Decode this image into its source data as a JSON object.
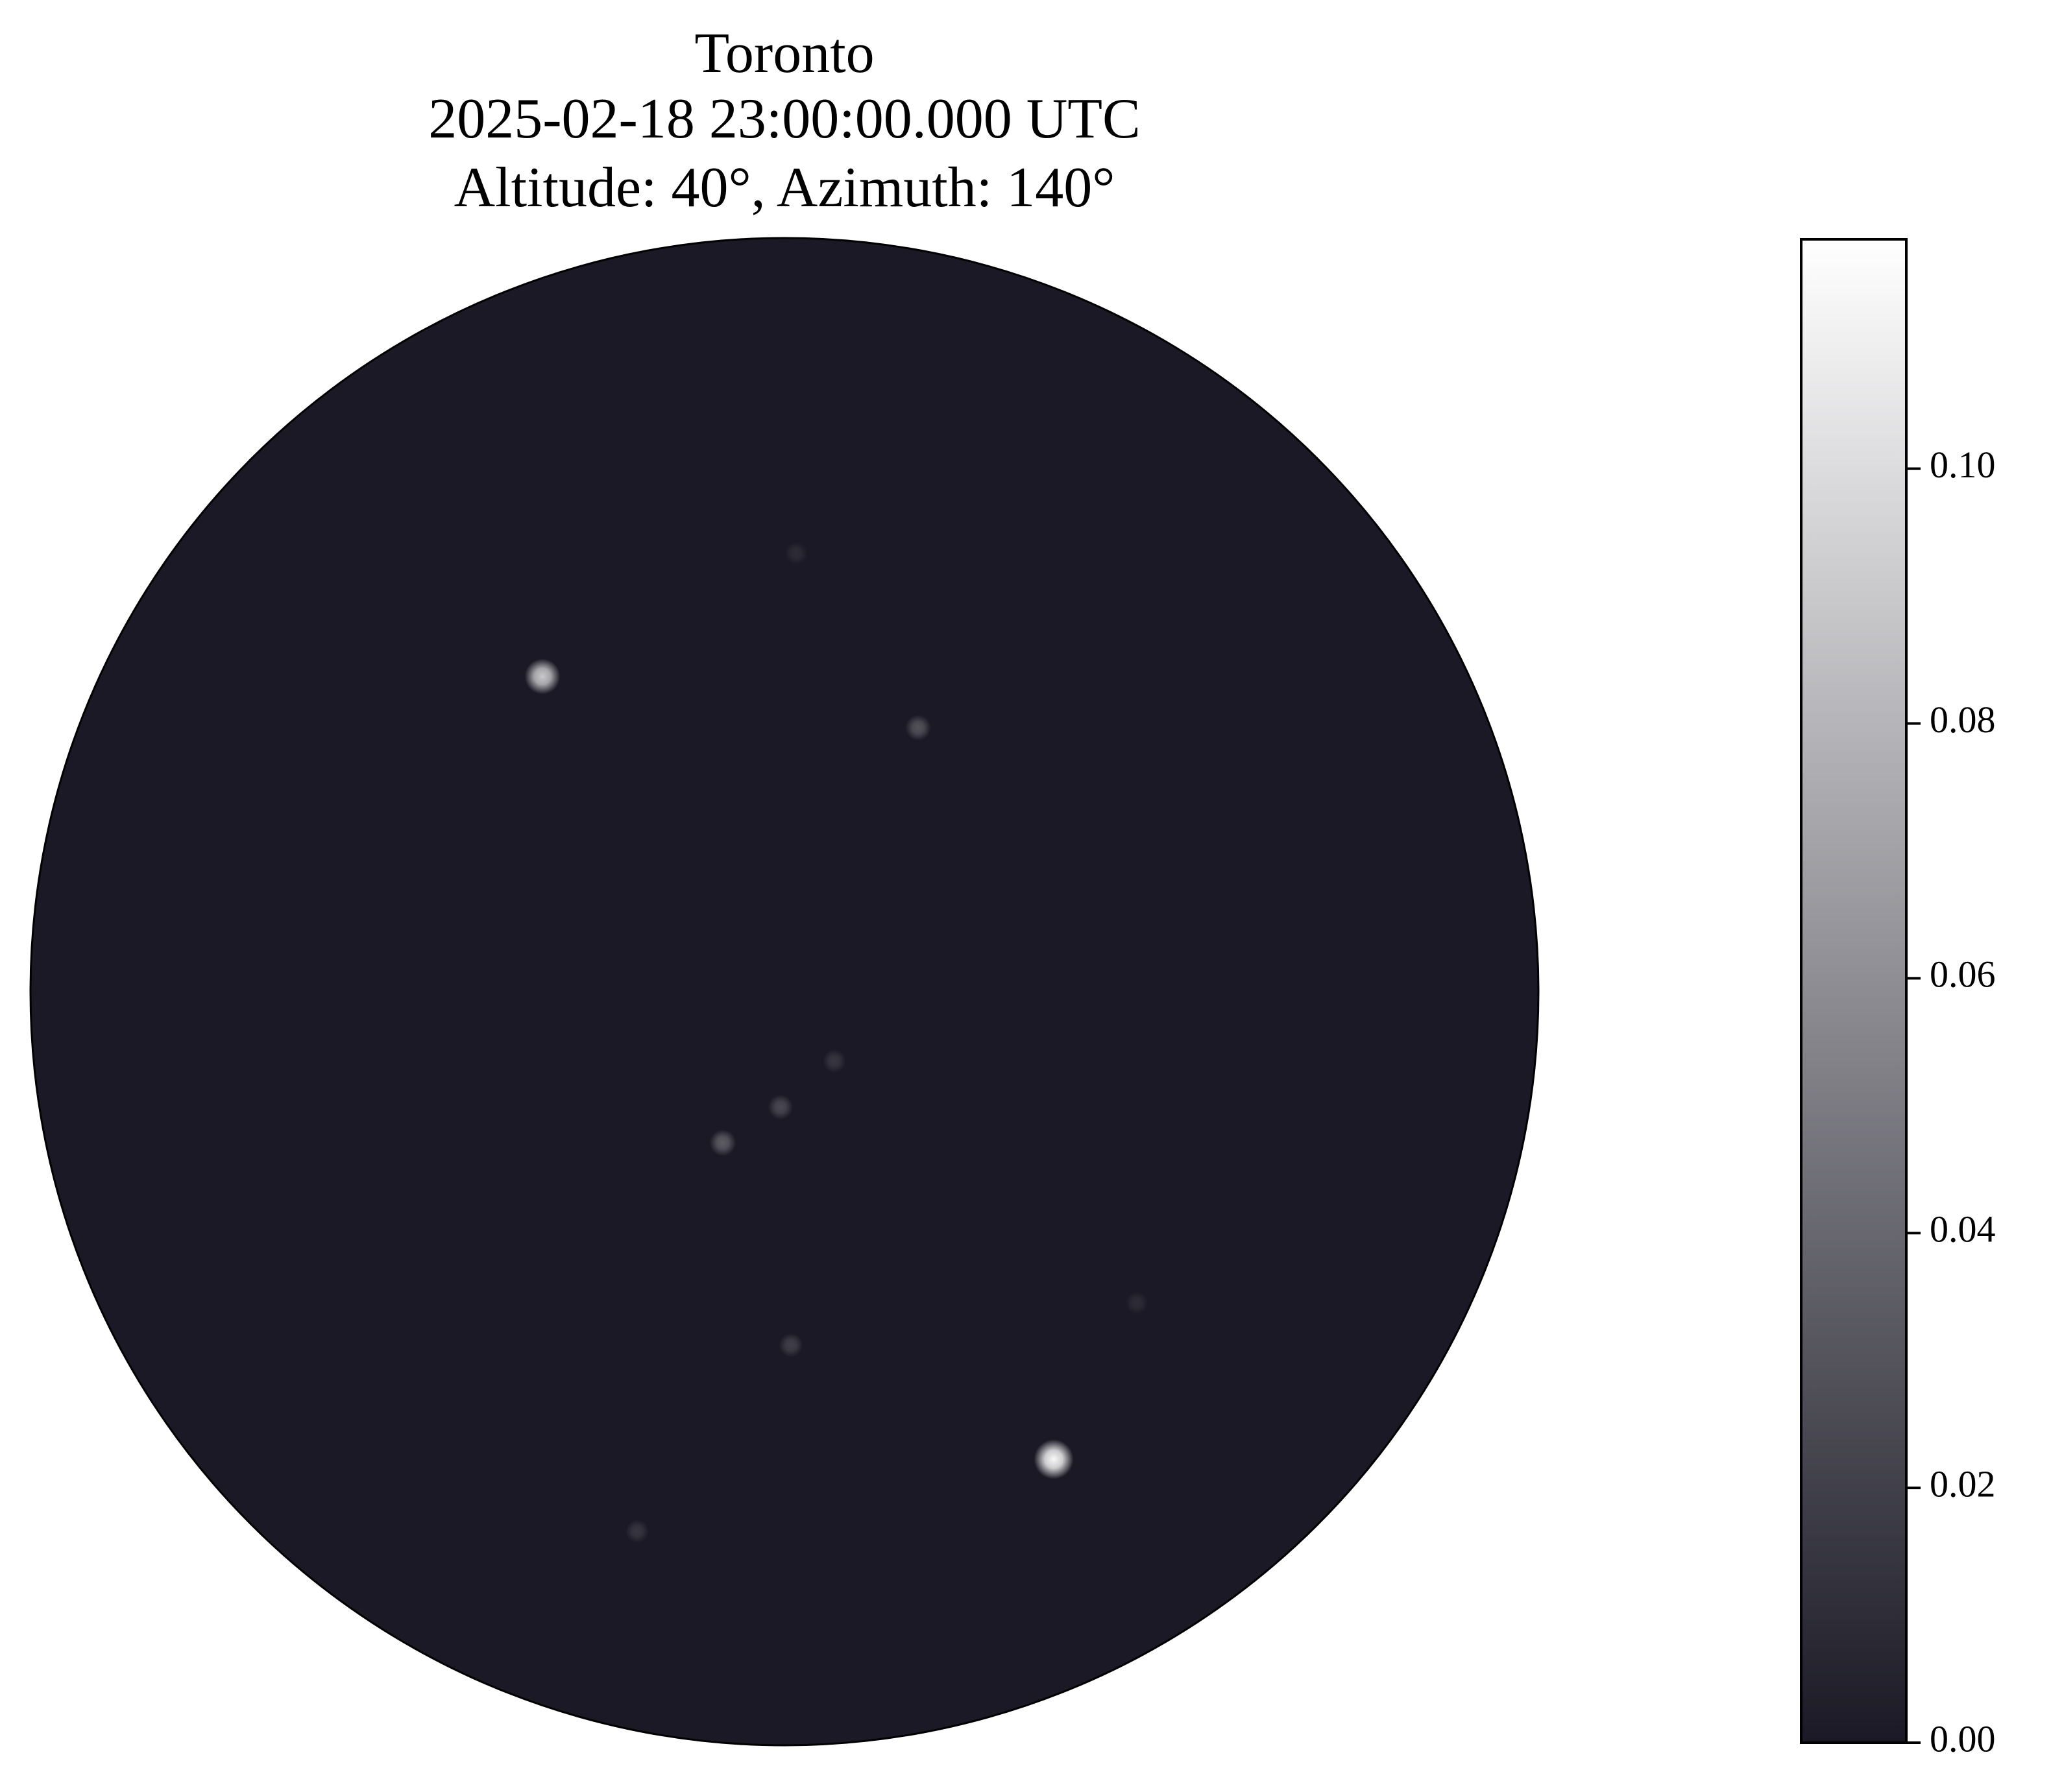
{
  "chart_data": {
    "type": "sky",
    "title": "Toronto",
    "subtitle": "2025-02-18 23:00:00.000 UTC",
    "annotation": "Altitude: 40°, Azimuth: 140°",
    "values": [
      0.01,
      0.09,
      0.03,
      0.015,
      0.025,
      0.035,
      0.01,
      0.02,
      0.115,
      0.015
    ],
    "colormap": [
      "#1a1925",
      "#ffffff"
    ],
    "colorbar_lim": [
      0,
      0.118
    ],
    "colorbar_ticks": [
      {
        "value": 0,
        "label": "0.00"
      },
      {
        "value": 0.02,
        "label": "0.02"
      },
      {
        "value": 0.04,
        "label": "0.04"
      },
      {
        "value": 0.06,
        "label": "0.06"
      },
      {
        "value": 0.08,
        "label": "0.08"
      },
      {
        "value": 0.1,
        "label": "0.10"
      }
    ]
  }
}
